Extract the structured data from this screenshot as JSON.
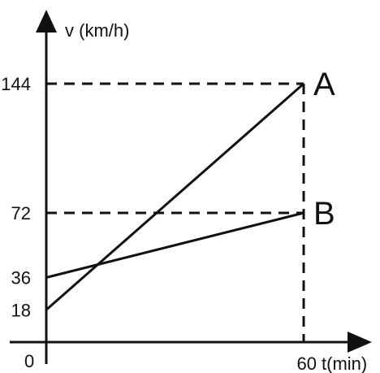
{
  "chart_data": {
    "type": "line",
    "xlabel": "t(min)",
    "ylabel": "v (km/h)",
    "x_ticks": [
      {
        "value": 60,
        "label": "60"
      }
    ],
    "y_ticks": [
      {
        "value": 144,
        "label": "144"
      },
      {
        "value": 72,
        "label": "72"
      },
      {
        "value": 36,
        "label": "36"
      },
      {
        "value": 18,
        "label": "18"
      }
    ],
    "origin_label": "0",
    "xlim": [
      0,
      60
    ],
    "ylim": [
      0,
      144
    ],
    "grid": false,
    "series": [
      {
        "name": "A",
        "x": [
          0,
          60
        ],
        "y": [
          18,
          144
        ]
      },
      {
        "name": "B",
        "x": [
          0,
          60
        ],
        "y": [
          36,
          72
        ]
      }
    ],
    "reference_lines": [
      {
        "axis": "y",
        "value": 144,
        "style": "dashed"
      },
      {
        "axis": "y",
        "value": 72,
        "style": "dashed"
      },
      {
        "axis": "x",
        "value": 60,
        "style": "dashed"
      }
    ]
  }
}
